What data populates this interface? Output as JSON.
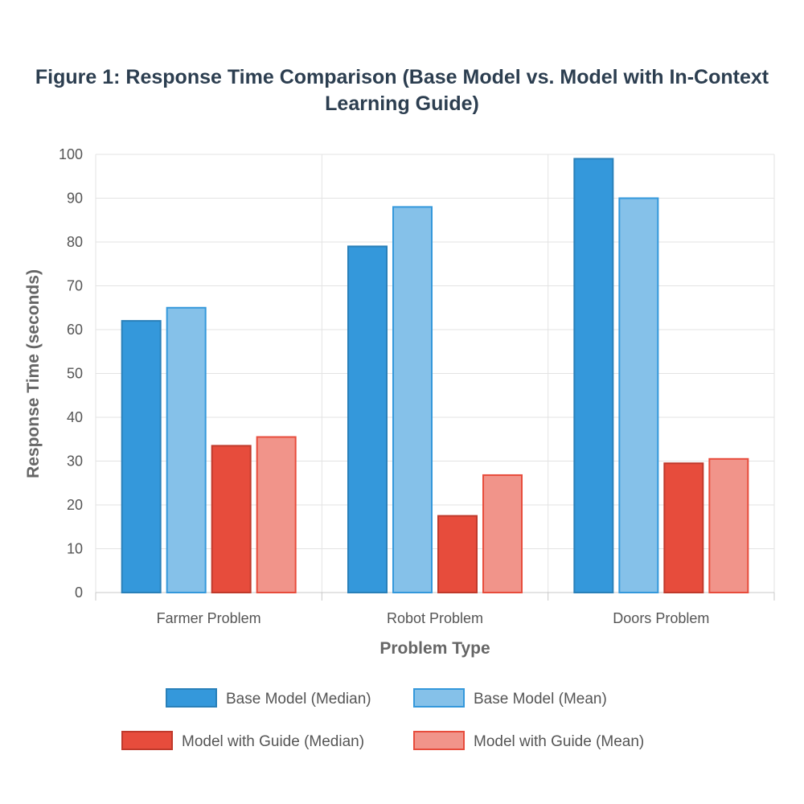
{
  "chart_data": {
    "type": "bar",
    "title": "Figure 1: Response Time Comparison (Base Model vs. Model with In-Context Learning Guide)",
    "xlabel": "Problem Type",
    "ylabel": "Response Time (seconds)",
    "categories": [
      "Farmer Problem",
      "Robot Problem",
      "Doors Problem"
    ],
    "ylim": [
      0,
      100
    ],
    "yticks": [
      0,
      10,
      20,
      30,
      40,
      50,
      60,
      70,
      80,
      90,
      100
    ],
    "grid": true,
    "legend_position": "bottom",
    "series": [
      {
        "name": "Base Model (Median)",
        "values": [
          62,
          79,
          99
        ],
        "fill": "#3498db",
        "stroke": "#2980b9"
      },
      {
        "name": "Base Model (Mean)",
        "values": [
          65,
          88,
          90
        ],
        "fill": "#85c1e9",
        "stroke": "#3498db"
      },
      {
        "name": "Model with Guide (Median)",
        "values": [
          33.5,
          17.5,
          29.5
        ],
        "fill": "#e74c3c",
        "stroke": "#c0392b"
      },
      {
        "name": "Model with Guide (Mean)",
        "values": [
          35.5,
          26.8,
          30.5
        ],
        "fill": "#f1948a",
        "stroke": "#e74c3c"
      }
    ]
  }
}
